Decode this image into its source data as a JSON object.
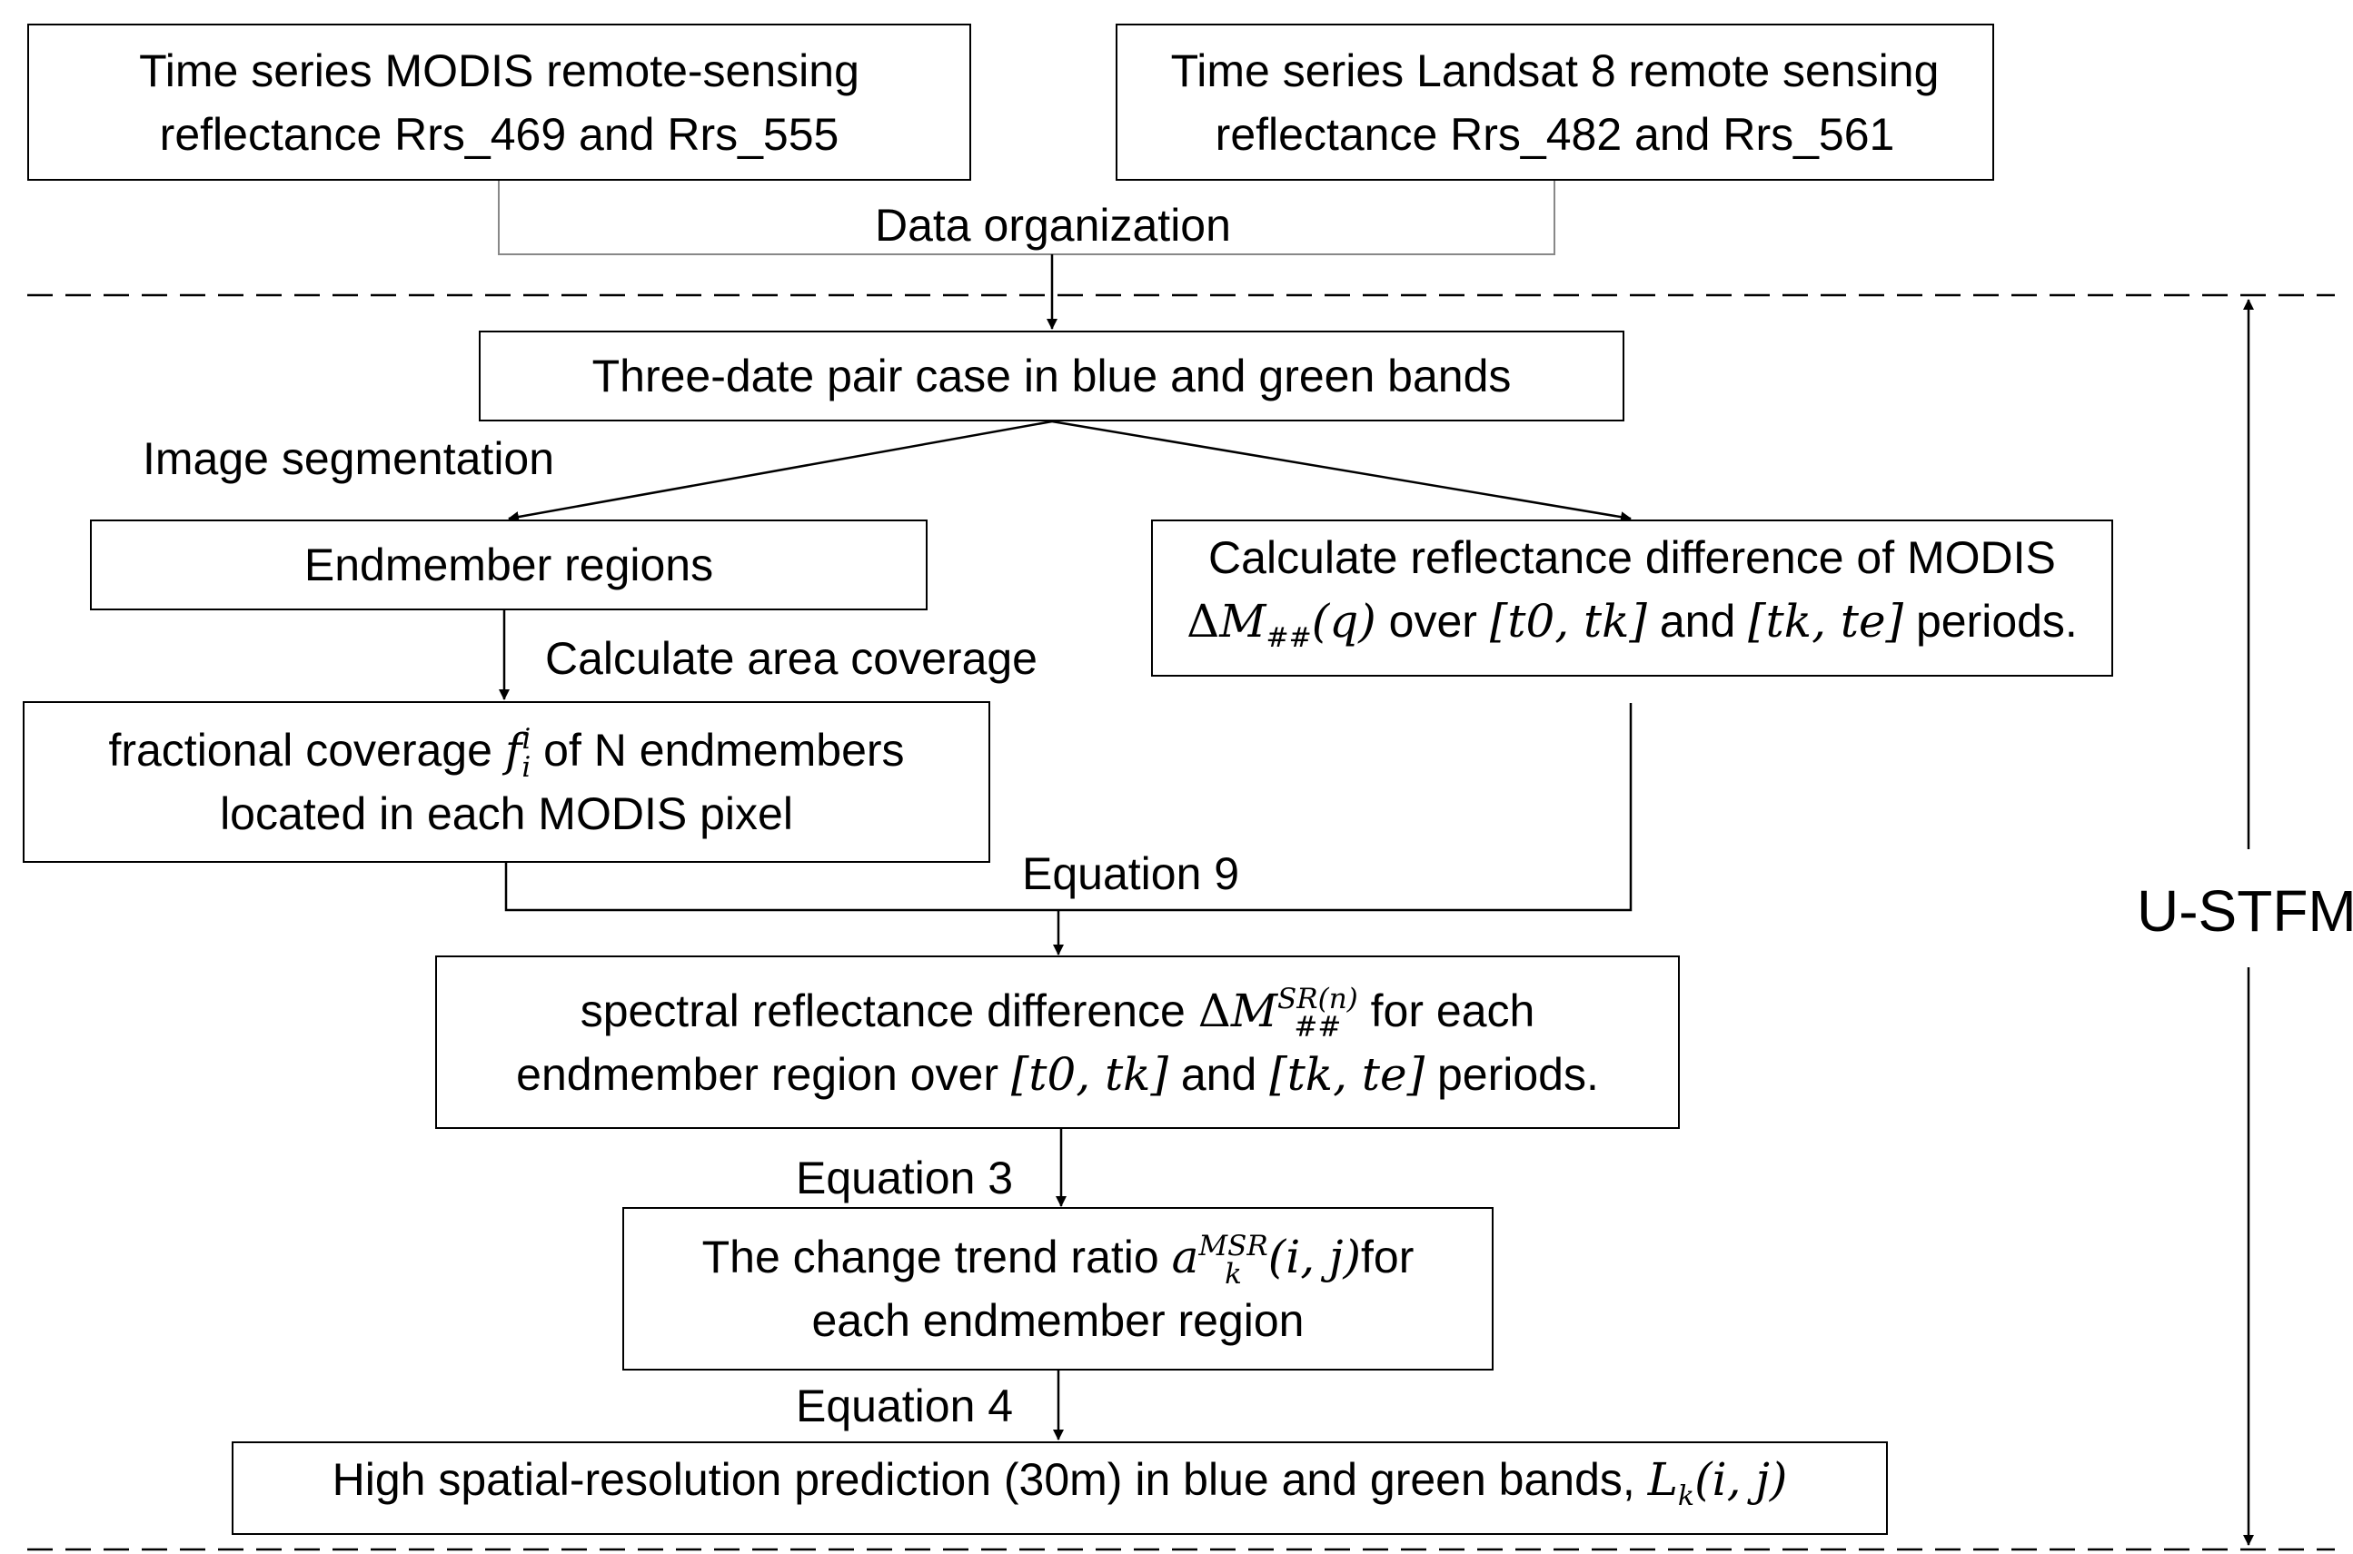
{
  "inputs": {
    "modis": {
      "line1": "Time series MODIS remote-sensing",
      "line2": "reflectance Rrs_469 and Rrs_555"
    },
    "landsat": {
      "line1": "Time series Landsat 8 remote sensing",
      "line2": "reflectance Rrs_482 and Rrs_561"
    }
  },
  "labels": {
    "data_organization": "Data organization",
    "image_segmentation": "Image segmentation",
    "calculate_area_coverage": "Calculate area coverage",
    "equation_9": "Equation 9",
    "equation_3": "Equation 3",
    "equation_4": "Equation 4",
    "ustfm": "U-STFM"
  },
  "boxes": {
    "three_date": "Three-date pair case in blue and green bands",
    "endmember_regions": "Endmember regions",
    "modis_difference": {
      "line1": "Calculate reflectance difference of MODIS",
      "delta": "Δ",
      "M": "M",
      "sub": "##",
      "arg": "(q)",
      "over": " over ",
      "int1": "[t0, tk]",
      "and": " and ",
      "int2": "[tk, te]",
      "periods": " periods."
    },
    "fractional_coverage": {
      "pre": "fractional coverage ",
      "f": "f",
      "sup": "i",
      "sub": "i",
      "post": " of N endmembers",
      "line2": "located in each MODIS pixel"
    },
    "spectral_difference": {
      "pre": "spectral reflectance difference ",
      "delta": "Δ",
      "M": "M",
      "sup": "SR(n)",
      "sub": "##",
      "post": " for each",
      "line2_pre": "endmember region over ",
      "int1": "[t0, tk]",
      "and": " and ",
      "int2": "[tk, te]",
      "periods": " periods."
    },
    "change_trend": {
      "pre": "The change trend ratio ",
      "a": "a",
      "sup": "MSR",
      "sub": "k",
      "arg": "(i, j)",
      "post": "for",
      "line2": "each endmember region"
    },
    "prediction": {
      "pre": "High spatial-resolution prediction (30m) in blue and green bands, ",
      "L": "L",
      "sub": "k",
      "arg": "(i, j)"
    }
  }
}
